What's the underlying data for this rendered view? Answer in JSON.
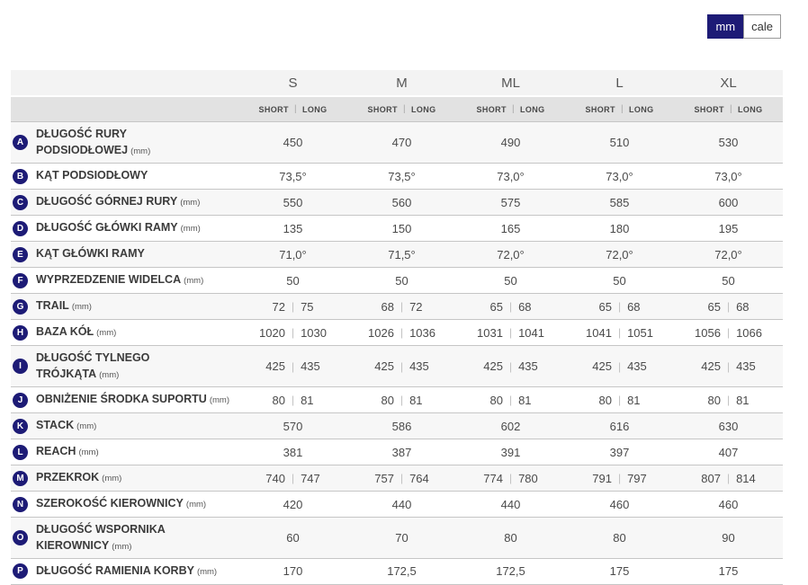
{
  "units_toggle": {
    "mm_label": "mm",
    "cale_label": "cale",
    "selected": "mm"
  },
  "colors": {
    "accent_navy": "#1d1b76",
    "row_border": "#c6c6c6",
    "zebra_row": "#f7f7f7",
    "size_header_bg": "#f3f3f3",
    "variant_header_bg": "#e2e2e2"
  },
  "table": {
    "sizes": [
      "S",
      "M",
      "ML",
      "L",
      "XL"
    ],
    "variant_labels": {
      "short": "SHORT",
      "long": "LONG"
    },
    "rows": [
      {
        "letter": "A",
        "label": "DŁUGOŚĆ RURY PODSIODŁOWEJ",
        "unit": "(mm)",
        "values": [
          "450",
          "470",
          "490",
          "510",
          "530"
        ]
      },
      {
        "letter": "B",
        "label": "KĄT PODSIODŁOWY",
        "unit": "",
        "values": [
          "73,5°",
          "73,5°",
          "73,0°",
          "73,0°",
          "73,0°"
        ]
      },
      {
        "letter": "C",
        "label": "DŁUGOŚĆ GÓRNEJ RURY",
        "unit": "(mm)",
        "values": [
          "550",
          "560",
          "575",
          "585",
          "600"
        ]
      },
      {
        "letter": "D",
        "label": "DŁUGOŚĆ GŁÓWKI RAMY",
        "unit": "(mm)",
        "values": [
          "135",
          "150",
          "165",
          "180",
          "195"
        ]
      },
      {
        "letter": "E",
        "label": "KĄT GŁÓWKI RAMY",
        "unit": "",
        "values": [
          "71,0°",
          "71,5°",
          "72,0°",
          "72,0°",
          "72,0°"
        ]
      },
      {
        "letter": "F",
        "label": "WYPRZEDZENIE WIDELCA",
        "unit": "(mm)",
        "values": [
          "50",
          "50",
          "50",
          "50",
          "50"
        ]
      },
      {
        "letter": "G",
        "label": "TRAIL",
        "unit": "(mm)",
        "values": [
          [
            "72",
            "75"
          ],
          [
            "68",
            "72"
          ],
          [
            "65",
            "68"
          ],
          [
            "65",
            "68"
          ],
          [
            "65",
            "68"
          ]
        ]
      },
      {
        "letter": "H",
        "label": "BAZA KÓŁ",
        "unit": "(mm)",
        "values": [
          [
            "1020",
            "1030"
          ],
          [
            "1026",
            "1036"
          ],
          [
            "1031",
            "1041"
          ],
          [
            "1041",
            "1051"
          ],
          [
            "1056",
            "1066"
          ]
        ]
      },
      {
        "letter": "I",
        "label": "DŁUGOŚĆ TYLNEGO TRÓJKĄTA",
        "unit": "(mm)",
        "values": [
          [
            "425",
            "435"
          ],
          [
            "425",
            "435"
          ],
          [
            "425",
            "435"
          ],
          [
            "425",
            "435"
          ],
          [
            "425",
            "435"
          ]
        ]
      },
      {
        "letter": "J",
        "label": "OBNIŻENIE ŚRODKA SUPORTU",
        "unit": "(mm)",
        "values": [
          [
            "80",
            "81"
          ],
          [
            "80",
            "81"
          ],
          [
            "80",
            "81"
          ],
          [
            "80",
            "81"
          ],
          [
            "80",
            "81"
          ]
        ]
      },
      {
        "letter": "K",
        "label": "STACK",
        "unit": "(mm)",
        "values": [
          "570",
          "586",
          "602",
          "616",
          "630"
        ]
      },
      {
        "letter": "L",
        "label": "REACH",
        "unit": "(mm)",
        "values": [
          "381",
          "387",
          "391",
          "397",
          "407"
        ]
      },
      {
        "letter": "M",
        "label": "PRZEKROK",
        "unit": "(mm)",
        "values": [
          [
            "740",
            "747"
          ],
          [
            "757",
            "764"
          ],
          [
            "774",
            "780"
          ],
          [
            "791",
            "797"
          ],
          [
            "807",
            "814"
          ]
        ]
      },
      {
        "letter": "N",
        "label": "SZEROKOŚĆ KIEROWNICY",
        "unit": "(mm)",
        "values": [
          "420",
          "440",
          "440",
          "460",
          "460"
        ]
      },
      {
        "letter": "O",
        "label": "DŁUGOŚĆ WSPORNIKA KIEROWNICY",
        "unit": "(mm)",
        "values": [
          "60",
          "70",
          "80",
          "80",
          "90"
        ]
      },
      {
        "letter": "P",
        "label": "DŁUGOŚĆ RAMIENIA KORBY",
        "unit": "(mm)",
        "values": [
          "170",
          "172,5",
          "172,5",
          "175",
          "175"
        ]
      }
    ]
  }
}
